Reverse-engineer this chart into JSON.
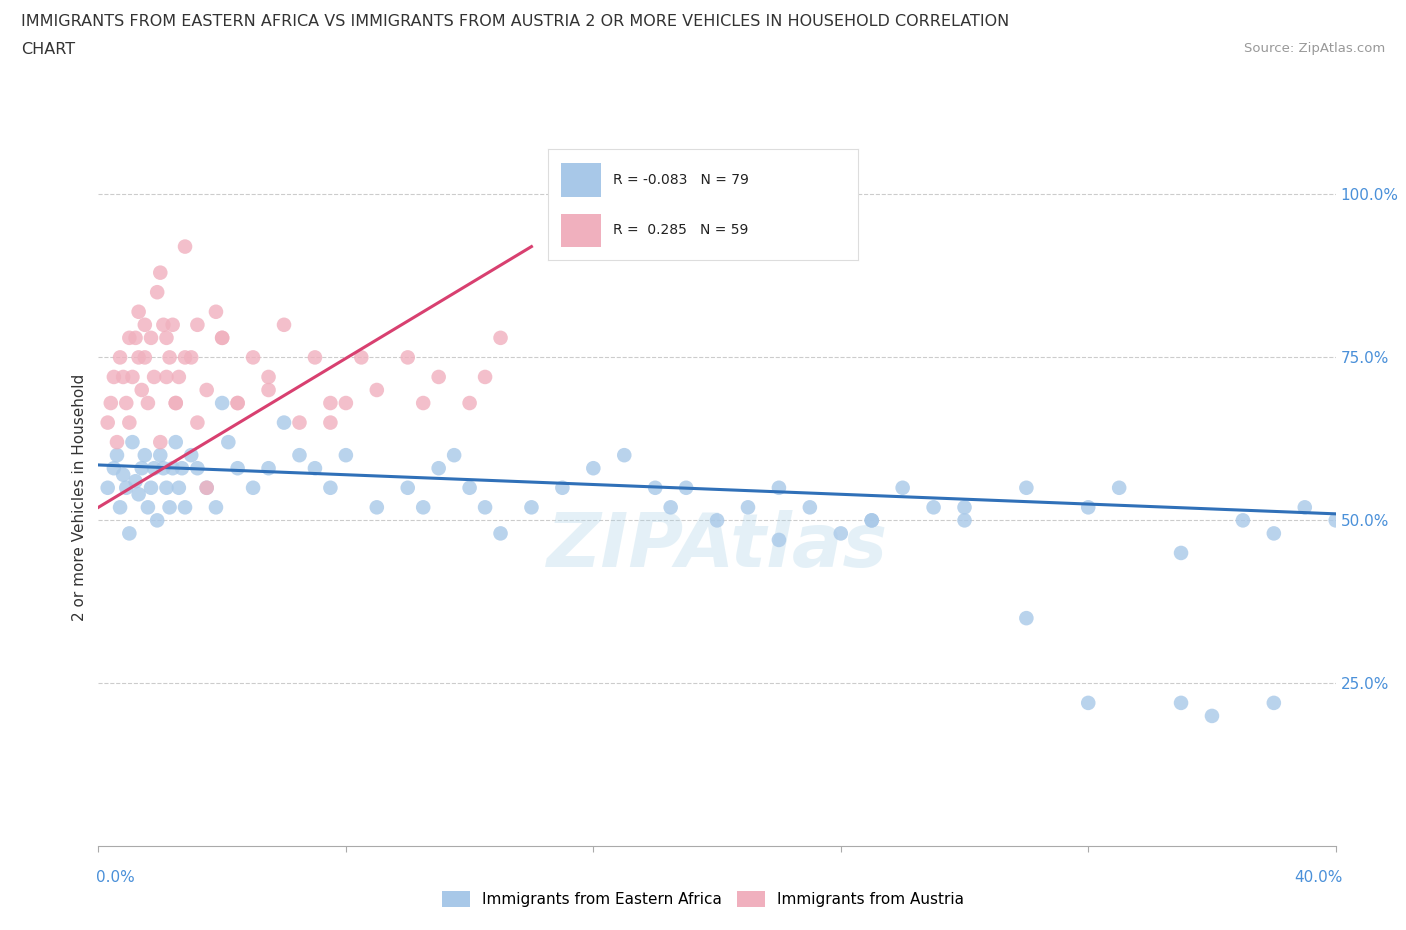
{
  "title_line1": "IMMIGRANTS FROM EASTERN AFRICA VS IMMIGRANTS FROM AUSTRIA 2 OR MORE VEHICLES IN HOUSEHOLD CORRELATION",
  "title_line2": "CHART",
  "source": "Source: ZipAtlas.com",
  "ylabel": "2 or more Vehicles in Household",
  "legend_label1": "Immigrants from Eastern Africa",
  "legend_label2": "Immigrants from Austria",
  "R1": -0.083,
  "N1": 79,
  "R2": 0.285,
  "N2": 59,
  "color_blue": "#a8c8e8",
  "color_blue_line": "#3070b8",
  "color_pink": "#f0b0be",
  "color_pink_line": "#d84070",
  "watermark": "ZIPAtlas",
  "xlim": [
    0,
    40
  ],
  "ylim": [
    0,
    105
  ],
  "blue_x": [
    0.3,
    0.5,
    0.6,
    0.7,
    0.8,
    0.9,
    1.0,
    1.1,
    1.2,
    1.3,
    1.4,
    1.5,
    1.6,
    1.7,
    1.8,
    1.9,
    2.0,
    2.1,
    2.2,
    2.3,
    2.4,
    2.5,
    2.6,
    2.7,
    2.8,
    3.0,
    3.2,
    3.5,
    3.8,
    4.0,
    4.2,
    4.5,
    5.0,
    5.5,
    6.0,
    6.5,
    7.0,
    7.5,
    8.0,
    9.0,
    10.0,
    10.5,
    11.0,
    11.5,
    12.0,
    12.5,
    13.0,
    14.0,
    15.0,
    16.0,
    17.0,
    18.0,
    18.5,
    19.0,
    20.0,
    21.0,
    22.0,
    23.0,
    24.0,
    25.0,
    26.0,
    27.0,
    28.0,
    30.0,
    32.0,
    33.0,
    35.0,
    36.0,
    37.0,
    38.0,
    39.0,
    22.0,
    25.0,
    28.0,
    30.0,
    32.0,
    35.0,
    38.0,
    40.0
  ],
  "blue_y": [
    55,
    58,
    60,
    52,
    57,
    55,
    48,
    62,
    56,
    54,
    58,
    60,
    52,
    55,
    58,
    50,
    60,
    58,
    55,
    52,
    58,
    62,
    55,
    58,
    52,
    60,
    58,
    55,
    52,
    68,
    62,
    58,
    55,
    58,
    65,
    60,
    58,
    55,
    60,
    52,
    55,
    52,
    58,
    60,
    55,
    52,
    48,
    52,
    55,
    58,
    60,
    55,
    52,
    55,
    50,
    52,
    55,
    52,
    48,
    50,
    55,
    52,
    50,
    55,
    52,
    55,
    22,
    20,
    50,
    48,
    52,
    47,
    50,
    52,
    35,
    22,
    45,
    22,
    50
  ],
  "pink_x": [
    0.3,
    0.4,
    0.5,
    0.6,
    0.7,
    0.8,
    0.9,
    1.0,
    1.0,
    1.1,
    1.2,
    1.3,
    1.3,
    1.4,
    1.5,
    1.5,
    1.6,
    1.7,
    1.8,
    1.9,
    2.0,
    2.0,
    2.1,
    2.2,
    2.2,
    2.3,
    2.4,
    2.5,
    2.6,
    2.8,
    3.0,
    3.2,
    3.5,
    3.8,
    4.0,
    4.5,
    5.0,
    5.5,
    6.0,
    7.0,
    7.5,
    8.0,
    9.0,
    10.0,
    11.0,
    12.0,
    13.0,
    2.5,
    2.8,
    3.2,
    3.5,
    4.0,
    4.5,
    5.5,
    6.5,
    7.5,
    8.5,
    10.5,
    12.5
  ],
  "pink_y": [
    65,
    68,
    72,
    62,
    75,
    72,
    68,
    65,
    78,
    72,
    78,
    82,
    75,
    70,
    80,
    75,
    68,
    78,
    72,
    85,
    88,
    62,
    80,
    78,
    72,
    75,
    80,
    68,
    72,
    92,
    75,
    65,
    70,
    82,
    78,
    68,
    75,
    70,
    80,
    75,
    65,
    68,
    70,
    75,
    72,
    68,
    78,
    68,
    75,
    80,
    55,
    78,
    68,
    72,
    65,
    68,
    75,
    68,
    72
  ]
}
